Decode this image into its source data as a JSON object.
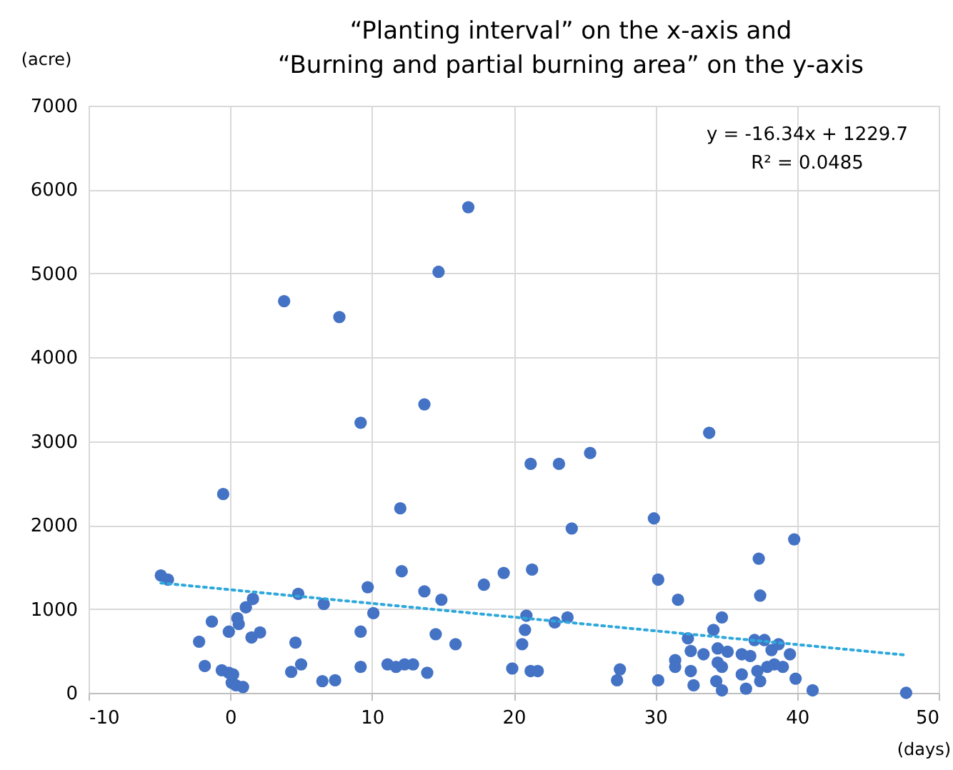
{
  "chart_data": {
    "type": "scatter",
    "title": "“Planting interval” on the x-axis and\n“Burning and partial burning area” on the y-axis",
    "xlabel": "(days)",
    "ylabel": "(acre)",
    "annotations": [
      "y = -16.34x + 1229.7",
      "R² = 0.0485"
    ],
    "xlim": [
      -10,
      50
    ],
    "xticks": [
      -10,
      0,
      10,
      20,
      30,
      40,
      50
    ],
    "ylim": [
      0,
      7000
    ],
    "yticks": [
      0,
      1000,
      2000,
      3000,
      4000,
      5000,
      6000,
      7000
    ],
    "grid": true,
    "marker": "circle",
    "series": [
      {
        "color": "#4472c4",
        "x": [
          -4.9,
          -4.4,
          -2.2,
          -1.3,
          -1.8,
          -0.6,
          -0.5,
          -0.1,
          0.1,
          0.2,
          0.4,
          0.9,
          -0.1,
          0.5,
          0.6,
          1.1,
          1.6,
          1.5,
          2.1,
          3.8,
          7.7,
          9.2,
          13.7,
          14.7,
          16.8,
          4.8,
          4.6,
          5.0,
          4.3,
          6.5,
          6.6,
          7.4,
          9.2,
          9.7,
          10.1,
          9.2,
          11.1,
          11.7,
          12.0,
          12.1,
          12.3,
          12.9,
          13.9,
          13.7,
          14.5,
          14.9,
          15.9,
          17.9,
          19.3,
          19.9,
          20.6,
          20.8,
          20.9,
          21.2,
          21.3,
          21.2,
          21.7,
          22.9,
          23.2,
          23.8,
          24.1,
          25.4,
          29.9,
          30.2,
          30.2,
          31.6,
          39.8,
          37.3,
          37.4,
          32.7,
          34.7,
          34.1,
          32.3,
          32.5,
          31.4,
          31.4,
          32.5,
          33.4,
          34.4,
          34.4,
          34.7,
          34.3,
          34.7,
          35.1,
          36.1,
          36.7,
          36.1,
          36.4,
          37.0,
          37.7,
          37.4,
          38.2,
          38.7,
          39.5,
          39.0,
          38.4,
          37.9,
          37.2,
          39.9,
          41.1,
          33.8,
          27.3,
          27.5,
          47.7
        ],
        "values": [
          1400,
          1350,
          610,
          850,
          320,
          270,
          2370,
          240,
          120,
          220,
          90,
          70,
          730,
          890,
          820,
          1020,
          1120,
          660,
          720,
          4670,
          4480,
          3220,
          3440,
          5020,
          5790,
          1180,
          600,
          340,
          250,
          140,
          1060,
          150,
          730,
          1260,
          950,
          310,
          340,
          310,
          2200,
          1450,
          340,
          340,
          240,
          1210,
          700,
          1110,
          580,
          1290,
          1430,
          290,
          580,
          750,
          920,
          2730,
          1470,
          260,
          260,
          840,
          2730,
          900,
          1960,
          2860,
          2080,
          1350,
          150,
          1110,
          1830,
          1600,
          1160,
          90,
          900,
          750,
          650,
          500,
          390,
          310,
          260,
          460,
          530,
          360,
          310,
          140,
          30,
          490,
          460,
          440,
          220,
          50,
          630,
          630,
          140,
          510,
          580,
          460,
          310,
          340,
          310,
          260,
          170,
          30,
          3100,
          150,
          280,
          0
        ]
      },
      {
        "type": "line",
        "color": "#2ea8dc",
        "line_style": "dotted",
        "marker": "none",
        "x": [
          -4.9,
          47.7
        ],
        "values": [
          1310,
          450
        ]
      }
    ]
  }
}
